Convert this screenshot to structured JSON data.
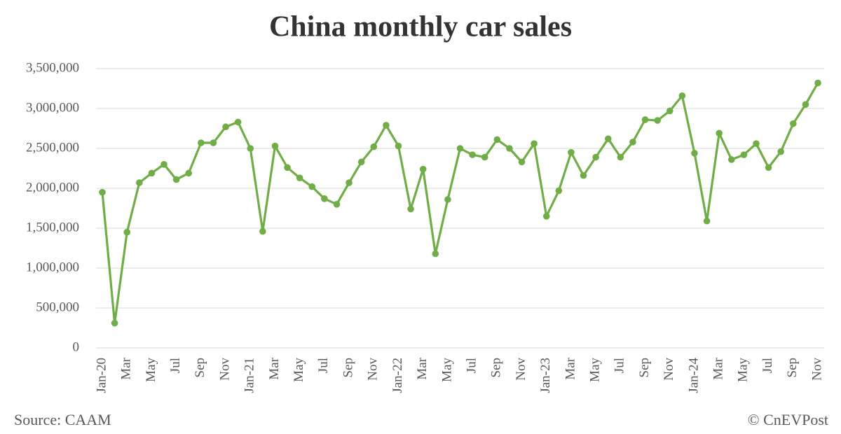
{
  "chart_data": {
    "type": "line",
    "title": "China monthly car sales",
    "source": "Source: CAAM",
    "credit": "© CnEVPost",
    "categories": [
      "Jan-20",
      null,
      "Mar",
      null,
      "May",
      null,
      "Jul",
      null,
      "Sep",
      null,
      "Nov",
      null,
      "Jan-21",
      null,
      "Mar",
      null,
      "May",
      null,
      "Jul",
      null,
      "Sep",
      null,
      "Nov",
      null,
      "Jan-22",
      null,
      "Mar",
      null,
      "May",
      null,
      "Jul",
      null,
      "Sep",
      null,
      "Nov",
      null,
      "Jan-23",
      null,
      "Mar",
      null,
      "May",
      null,
      "Jul",
      null,
      "Sep",
      null,
      "Nov",
      null,
      "Jan-24",
      null,
      "Mar",
      null,
      "May",
      null,
      "Jul",
      null,
      "Sep",
      null,
      "Nov"
    ],
    "values": [
      1950000,
      310000,
      1450000,
      2070000,
      2190000,
      2300000,
      2110000,
      2190000,
      2570000,
      2570000,
      2770000,
      2830000,
      2500000,
      1460000,
      2530000,
      2260000,
      2130000,
      2020000,
      1870000,
      1800000,
      2070000,
      2330000,
      2520000,
      2790000,
      2530000,
      1740000,
      2240000,
      1180000,
      1860000,
      2500000,
      2420000,
      2390000,
      2610000,
      2500000,
      2330000,
      2560000,
      1650000,
      1970000,
      2450000,
      2160000,
      2390000,
      2620000,
      2390000,
      2580000,
      2860000,
      2850000,
      2970000,
      3160000,
      2440000,
      1590000,
      2690000,
      2360000,
      2420000,
      2560000,
      2260000,
      2460000,
      2810000,
      3050000,
      3320000
    ],
    "color": "#70ad47",
    "ylim": [
      0,
      3500000
    ],
    "yticks": [
      0,
      {
        "value": 500000,
        "label": "500,000"
      },
      {
        "value": 1000000,
        "label": "1,000,000"
      },
      {
        "value": 1500000,
        "label": "1,500,000"
      },
      {
        "value": 2000000,
        "label": "2,000,000"
      },
      {
        "value": 2500000,
        "label": "2,500,000"
      },
      {
        "value": 3000000,
        "label": "3,000,000"
      },
      {
        "value": 3500000,
        "label": "3,500,000"
      }
    ],
    "grid": true
  }
}
